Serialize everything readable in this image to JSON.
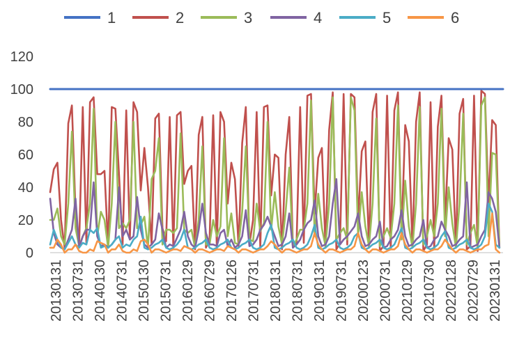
{
  "chart_data": {
    "type": "line",
    "title": "",
    "xlabel": "",
    "ylabel": "",
    "ylim": [
      0,
      120
    ],
    "yticks": [
      0,
      20,
      40,
      60,
      80,
      100,
      120
    ],
    "grid": false,
    "legend_position": "top",
    "x_tick_labels": [
      "20130131",
      "20130731",
      "20140130",
      "20140731",
      "20150130",
      "20150731",
      "20160129",
      "20160729",
      "20170126",
      "20170731",
      "20180131",
      "20180731",
      "20190131",
      "20190731",
      "20200123",
      "20200731",
      "20210129",
      "20210730",
      "20220128",
      "20220729",
      "20230131"
    ],
    "series": [
      {
        "name": "1",
        "color": "#4472c4",
        "values": [
          100,
          100,
          100,
          100,
          100,
          100,
          100,
          100,
          100,
          100,
          100,
          100,
          100,
          100,
          100,
          100,
          100,
          100,
          100,
          100,
          100,
          100,
          100,
          100,
          100,
          100,
          100,
          100,
          100,
          100,
          100,
          100,
          100,
          100,
          100,
          100,
          100,
          100,
          100,
          100,
          100,
          100,
          100,
          100,
          100,
          100,
          100,
          100,
          100,
          100,
          100,
          100,
          100,
          100,
          100,
          100,
          100,
          100,
          100,
          100,
          100,
          100,
          100,
          100,
          100,
          100,
          100,
          100,
          100,
          100,
          100,
          100,
          100,
          100,
          100,
          100,
          100,
          100,
          100,
          100,
          100,
          100,
          100,
          100,
          100,
          100,
          100,
          100,
          100,
          100,
          100,
          100,
          100,
          100,
          100,
          100,
          100,
          100,
          100,
          100,
          100,
          100,
          100,
          100,
          100,
          100,
          100,
          100,
          100,
          100,
          100,
          100,
          100,
          100,
          100,
          100,
          100,
          100,
          100,
          100,
          100,
          100,
          100,
          100,
          100,
          100
        ]
      },
      {
        "name": "2",
        "color": "#c0504d",
        "values": [
          37,
          51,
          55,
          20,
          3,
          79,
          90,
          25,
          5,
          89,
          6,
          92,
          95,
          48,
          48,
          50,
          3,
          89,
          88,
          48,
          5,
          87,
          8,
          92,
          86,
          38,
          64,
          40,
          5,
          82,
          85,
          15,
          7,
          83,
          3,
          84,
          86,
          42,
          50,
          53,
          2,
          72,
          83,
          3,
          8,
          84,
          3,
          86,
          80,
          30,
          55,
          45,
          4,
          67,
          89,
          5,
          20,
          86,
          3,
          89,
          90,
          35,
          60,
          58,
          2,
          60,
          83,
          4,
          5,
          89,
          6,
          96,
          97,
          24,
          58,
          64,
          3,
          75,
          98,
          2,
          6,
          97,
          5,
          97,
          95,
          20,
          62,
          68,
          3,
          86,
          97,
          1,
          4,
          96,
          2,
          87,
          98,
          12,
          78,
          68,
          3,
          80,
          98,
          1,
          5,
          92,
          2,
          77,
          96,
          18,
          70,
          63,
          3,
          85,
          94,
          2,
          4,
          96,
          1,
          99,
          97,
          30,
          81,
          78,
          3
        ]
      },
      {
        "name": "3",
        "color": "#9bbb59",
        "values": [
          20,
          20,
          27,
          10,
          5,
          30,
          74,
          15,
          4,
          10,
          15,
          30,
          88,
          10,
          25,
          20,
          3,
          30,
          80,
          15,
          18,
          15,
          20,
          80,
          15,
          17,
          22,
          3,
          45,
          50,
          70,
          5,
          14,
          14,
          12,
          15,
          73,
          14,
          12,
          14,
          3,
          20,
          65,
          5,
          5,
          20,
          10,
          16,
          70,
          10,
          24,
          6,
          5,
          25,
          65,
          8,
          7,
          30,
          13,
          18,
          80,
          14,
          37,
          16,
          5,
          25,
          52,
          3,
          8,
          14,
          14,
          30,
          93,
          10,
          36,
          15,
          4,
          30,
          95,
          8,
          12,
          15,
          8,
          95,
          87,
          10,
          37,
          16,
          4,
          30,
          82,
          4,
          10,
          15,
          9,
          30,
          90,
          8,
          44,
          16,
          3,
          30,
          89,
          5,
          10,
          20,
          10,
          30,
          88,
          10,
          40,
          18,
          3,
          30,
          85,
          5,
          12,
          17,
          3,
          90,
          95,
          10,
          61,
          60,
          3
        ]
      },
      {
        "name": "4",
        "color": "#8064a2",
        "values": [
          33,
          12,
          5,
          3,
          2,
          8,
          14,
          33,
          3,
          10,
          14,
          14,
          43,
          10,
          4,
          5,
          3,
          5,
          8,
          40,
          10,
          14,
          8,
          10,
          34,
          14,
          5,
          3,
          5,
          8,
          24,
          14,
          3,
          5,
          4,
          9,
          14,
          25,
          10,
          5,
          3,
          14,
          30,
          12,
          5,
          5,
          4,
          12,
          14,
          4,
          8,
          3,
          5,
          10,
          26,
          4,
          5,
          8,
          14,
          17,
          22,
          16,
          10,
          4,
          5,
          10,
          24,
          3,
          5,
          8,
          14,
          18,
          20,
          32,
          10,
          4,
          5,
          10,
          30,
          45,
          5,
          8,
          10,
          13,
          16,
          24,
          10,
          4,
          5,
          8,
          10,
          19,
          3,
          4,
          8,
          10,
          14,
          26,
          10,
          4,
          5,
          8,
          10,
          20,
          3,
          4,
          8,
          10,
          19,
          14,
          10,
          4,
          5,
          8,
          10,
          43,
          3,
          4,
          5,
          10,
          14,
          37,
          33,
          25,
          3
        ]
      },
      {
        "name": "5",
        "color": "#4bacc6",
        "values": [
          5,
          14,
          8,
          3,
          2,
          6,
          10,
          5,
          3,
          6,
          5,
          14,
          12,
          15,
          3,
          4,
          3,
          5,
          8,
          10,
          3,
          5,
          4,
          8,
          10,
          22,
          3,
          2,
          3,
          5,
          6,
          8,
          3,
          2,
          3,
          5,
          8,
          14,
          3,
          2,
          3,
          5,
          6,
          8,
          3,
          2,
          3,
          5,
          6,
          8,
          3,
          2,
          3,
          5,
          6,
          8,
          3,
          2,
          3,
          5,
          12,
          17,
          3,
          2,
          3,
          5,
          6,
          8,
          3,
          2,
          3,
          5,
          10,
          17,
          3,
          2,
          3,
          5,
          6,
          8,
          3,
          2,
          3,
          5,
          10,
          12,
          3,
          2,
          3,
          5,
          6,
          8,
          3,
          2,
          3,
          5,
          10,
          15,
          3,
          2,
          3,
          5,
          6,
          8,
          3,
          2,
          3,
          5,
          10,
          13,
          3,
          2,
          3,
          5,
          6,
          8,
          3,
          2,
          3,
          5,
          10,
          30,
          25,
          5,
          3
        ]
      },
      {
        "name": "6",
        "color": "#f79646",
        "values": [
          3,
          3,
          8,
          5,
          0,
          2,
          2,
          5,
          1,
          0,
          0,
          2,
          1,
          7,
          6,
          5,
          0,
          2,
          2,
          5,
          1,
          0,
          0,
          2,
          1,
          7,
          8,
          5,
          0,
          2,
          2,
          1,
          0,
          1,
          2,
          2,
          1,
          4,
          3,
          2,
          0,
          2,
          2,
          1,
          0,
          1,
          2,
          2,
          1,
          4,
          3,
          2,
          0,
          2,
          2,
          1,
          0,
          1,
          2,
          2,
          4,
          7,
          5,
          2,
          0,
          2,
          2,
          1,
          0,
          1,
          2,
          2,
          4,
          12,
          5,
          2,
          0,
          2,
          2,
          1,
          0,
          1,
          2,
          2,
          4,
          12,
          5,
          2,
          0,
          2,
          2,
          1,
          0,
          1,
          2,
          2,
          4,
          12,
          5,
          2,
          0,
          2,
          2,
          1,
          0,
          1,
          2,
          2,
          4,
          8,
          5,
          2,
          0,
          2,
          2,
          1,
          0,
          1,
          2,
          2,
          4,
          5,
          24,
          2,
          0
        ]
      }
    ]
  }
}
